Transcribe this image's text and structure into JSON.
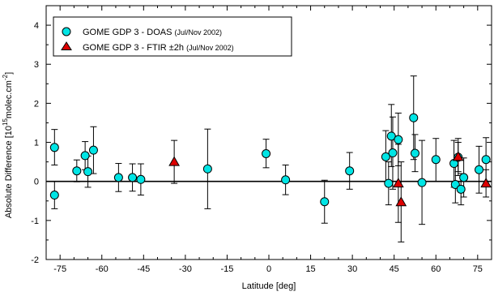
{
  "chart_data": {
    "type": "scatter",
    "xlabel": "Latitude [deg]",
    "ylabel": {
      "main": "Absolute Difference [10",
      "exp1": "15",
      "mid": "molec.cm",
      "exp2": "-2",
      "end": "]"
    },
    "xlim": [
      -80,
      80
    ],
    "ylim": [
      -2,
      4.5
    ],
    "xticks": [
      -75,
      -60,
      -45,
      -30,
      -15,
      0,
      15,
      30,
      45,
      60,
      75
    ],
    "yticks": [
      -2,
      -1,
      0,
      1,
      2,
      3,
      4
    ],
    "grid": false,
    "legend_position": "top-left",
    "series": [
      {
        "name": "GOME GDP 3 - DOAS",
        "name_note": "(Jul/Nov 2002)",
        "marker": "circle",
        "color": "#00e5e5",
        "points": [
          {
            "x": -77,
            "y": 0.87,
            "lo": 0.42,
            "hi": 1.33
          },
          {
            "x": -77,
            "y": -0.35,
            "lo": -0.7,
            "hi": 0.0
          },
          {
            "x": -69,
            "y": 0.27,
            "lo": -0.01,
            "hi": 0.55
          },
          {
            "x": -66,
            "y": 0.66,
            "lo": 0.3,
            "hi": 1.02
          },
          {
            "x": -65,
            "y": 0.25,
            "lo": -0.15,
            "hi": 0.65
          },
          {
            "x": -63,
            "y": 0.8,
            "lo": 0.2,
            "hi": 1.4
          },
          {
            "x": -54,
            "y": 0.1,
            "lo": -0.26,
            "hi": 0.46
          },
          {
            "x": -49,
            "y": 0.1,
            "lo": -0.25,
            "hi": 0.45
          },
          {
            "x": -46,
            "y": 0.05,
            "lo": -0.35,
            "hi": 0.45
          },
          {
            "x": -22,
            "y": 0.32,
            "lo": -0.7,
            "hi": 1.34
          },
          {
            "x": -1,
            "y": 0.71,
            "lo": 0.35,
            "hi": 1.08
          },
          {
            "x": 6,
            "y": 0.04,
            "lo": -0.34,
            "hi": 0.42
          },
          {
            "x": 20,
            "y": -0.52,
            "lo": -1.07,
            "hi": 0.03
          },
          {
            "x": 29,
            "y": 0.27,
            "lo": -0.2,
            "hi": 0.74
          },
          {
            "x": 42,
            "y": 0.63,
            "lo": 0.0,
            "hi": 1.3
          },
          {
            "x": 43,
            "y": -0.05,
            "lo": -0.6,
            "hi": 0.5
          },
          {
            "x": 44,
            "y": 1.16,
            "lo": 0.38,
            "hi": 1.97
          },
          {
            "x": 44.5,
            "y": 0.73,
            "lo": -0.2,
            "hi": 1.65
          },
          {
            "x": 46.5,
            "y": 1.07,
            "lo": 0.4,
            "hi": 1.75
          },
          {
            "x": 52,
            "y": 1.63,
            "lo": 0.56,
            "hi": 2.7
          },
          {
            "x": 52.5,
            "y": 0.72,
            "lo": 0.25,
            "hi": 1.2
          },
          {
            "x": 55,
            "y": -0.03,
            "lo": -1.1,
            "hi": 1.05
          },
          {
            "x": 60,
            "y": 0.56,
            "lo": 0.0,
            "hi": 1.1
          },
          {
            "x": 66.5,
            "y": 0.46,
            "lo": -0.15,
            "hi": 1.05
          },
          {
            "x": 67,
            "y": -0.08,
            "lo": -0.55,
            "hi": 0.4
          },
          {
            "x": 68,
            "y": 0.62,
            "lo": 0.15,
            "hi": 1.1
          },
          {
            "x": 69,
            "y": -0.2,
            "lo": -0.6,
            "hi": 0.2
          },
          {
            "x": 70,
            "y": 0.1,
            "lo": -0.4,
            "hi": 0.6
          },
          {
            "x": 75.5,
            "y": 0.3,
            "lo": -0.3,
            "hi": 0.9
          },
          {
            "x": 78,
            "y": 0.56,
            "lo": 0.0,
            "hi": 1.12
          }
        ]
      },
      {
        "name": "GOME GDP 3 - FTIR ±2h",
        "name_note": "(Jul/Nov 2002)",
        "marker": "triangle",
        "color": "#dd0000",
        "points": [
          {
            "x": -34,
            "y": 0.5,
            "lo": -0.05,
            "hi": 1.05
          },
          {
            "x": 46.5,
            "y": -0.05,
            "lo": -1.05,
            "hi": 0.95
          },
          {
            "x": 47.5,
            "y": -0.53,
            "lo": -1.55,
            "hi": 0.5
          },
          {
            "x": 68,
            "y": 0.63,
            "lo": 0.25,
            "hi": 1.0
          },
          {
            "x": 78,
            "y": -0.05,
            "lo": -0.4,
            "hi": 0.3
          }
        ]
      }
    ]
  },
  "legend": {
    "items": [
      {
        "label": "GOME GDP 3 - DOAS ",
        "note": "(Jul/Nov 2002)"
      },
      {
        "label": "GOME GDP 3 - FTIR ±2h ",
        "note": "(Jul/Nov 2002)"
      }
    ]
  }
}
